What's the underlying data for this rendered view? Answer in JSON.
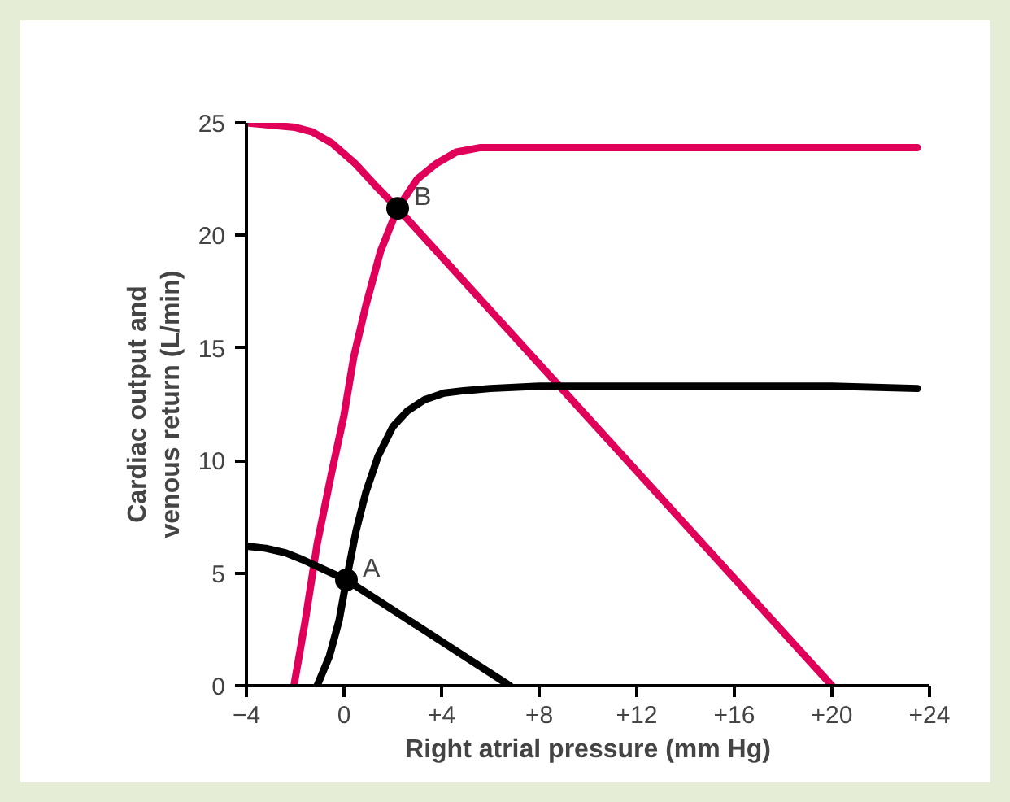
{
  "chart_data": {
    "type": "line",
    "xlabel": "Right atrial pressure (mm Hg)",
    "ylabel": "Cardiac output and\nvenous return (L/min)",
    "xlim": [
      -4,
      24
    ],
    "ylim": [
      0,
      25
    ],
    "xticks": [
      {
        "value": -4,
        "label": "−4"
      },
      0,
      {
        "value": 4,
        "label": "+4"
      },
      {
        "value": 8,
        "label": "+8"
      },
      {
        "value": 12,
        "label": "+12"
      },
      {
        "value": 16,
        "label": "+16"
      },
      {
        "value": 20,
        "label": "+20"
      },
      {
        "value": 24,
        "label": "+24"
      }
    ],
    "yticks": [
      0,
      5,
      10,
      15,
      20,
      25
    ],
    "grid": false,
    "line_style": "solid",
    "series": [
      {
        "color": "#e0005a",
        "x": [
          -2.05,
          -1.6,
          -1.1,
          -0.5,
          0,
          0.4,
          0.9,
          1.5,
          2.2,
          3,
          3.8,
          4.6,
          5.6,
          8,
          12,
          16,
          20,
          23.5
        ],
        "values": [
          0,
          2.8,
          6.3,
          9.5,
          12.0,
          14.6,
          16.9,
          19.3,
          21.2,
          22.5,
          23.2,
          23.7,
          23.9,
          23.9,
          23.9,
          23.9,
          23.9,
          23.9
        ]
      },
      {
        "color": "#e0005a",
        "x": [
          -4,
          -3,
          -2,
          -1.3,
          -0.5,
          0.45,
          1.3,
          2.2,
          20
        ],
        "values": [
          25,
          24.9,
          24.8,
          24.6,
          24.1,
          23.2,
          22.2,
          21.2,
          0
        ]
      },
      {
        "color": "#000000",
        "x": [
          -1.1,
          -0.6,
          -0.2,
          0.1,
          0.5,
          0.9,
          1.4,
          2,
          2.6,
          3.3,
          4.1,
          4.9,
          6,
          8,
          12,
          16,
          20,
          23.5
        ],
        "values": [
          0,
          1.3,
          2.9,
          4.7,
          6.9,
          8.6,
          10.2,
          11.5,
          12.2,
          12.7,
          13.0,
          13.1,
          13.2,
          13.3,
          13.3,
          13.3,
          13.3,
          13.2
        ]
      },
      {
        "color": "#000000",
        "x": [
          -4,
          -3.2,
          -2.4,
          -1.7,
          -1.1,
          -0.5,
          0.1,
          6.8
        ],
        "values": [
          6.2,
          6.1,
          5.9,
          5.6,
          5.3,
          5.0,
          4.7,
          0
        ]
      },
      {
        "type": "scatter",
        "marker": "circle",
        "color": "#000000",
        "x": [
          0.1,
          2.2
        ],
        "values": [
          4.7,
          21.2
        ]
      }
    ],
    "annotations": [
      {
        "text": "A",
        "x": 0.1,
        "y": 4.7
      },
      {
        "text": "B",
        "x": 2.2,
        "y": 21.2
      }
    ]
  }
}
